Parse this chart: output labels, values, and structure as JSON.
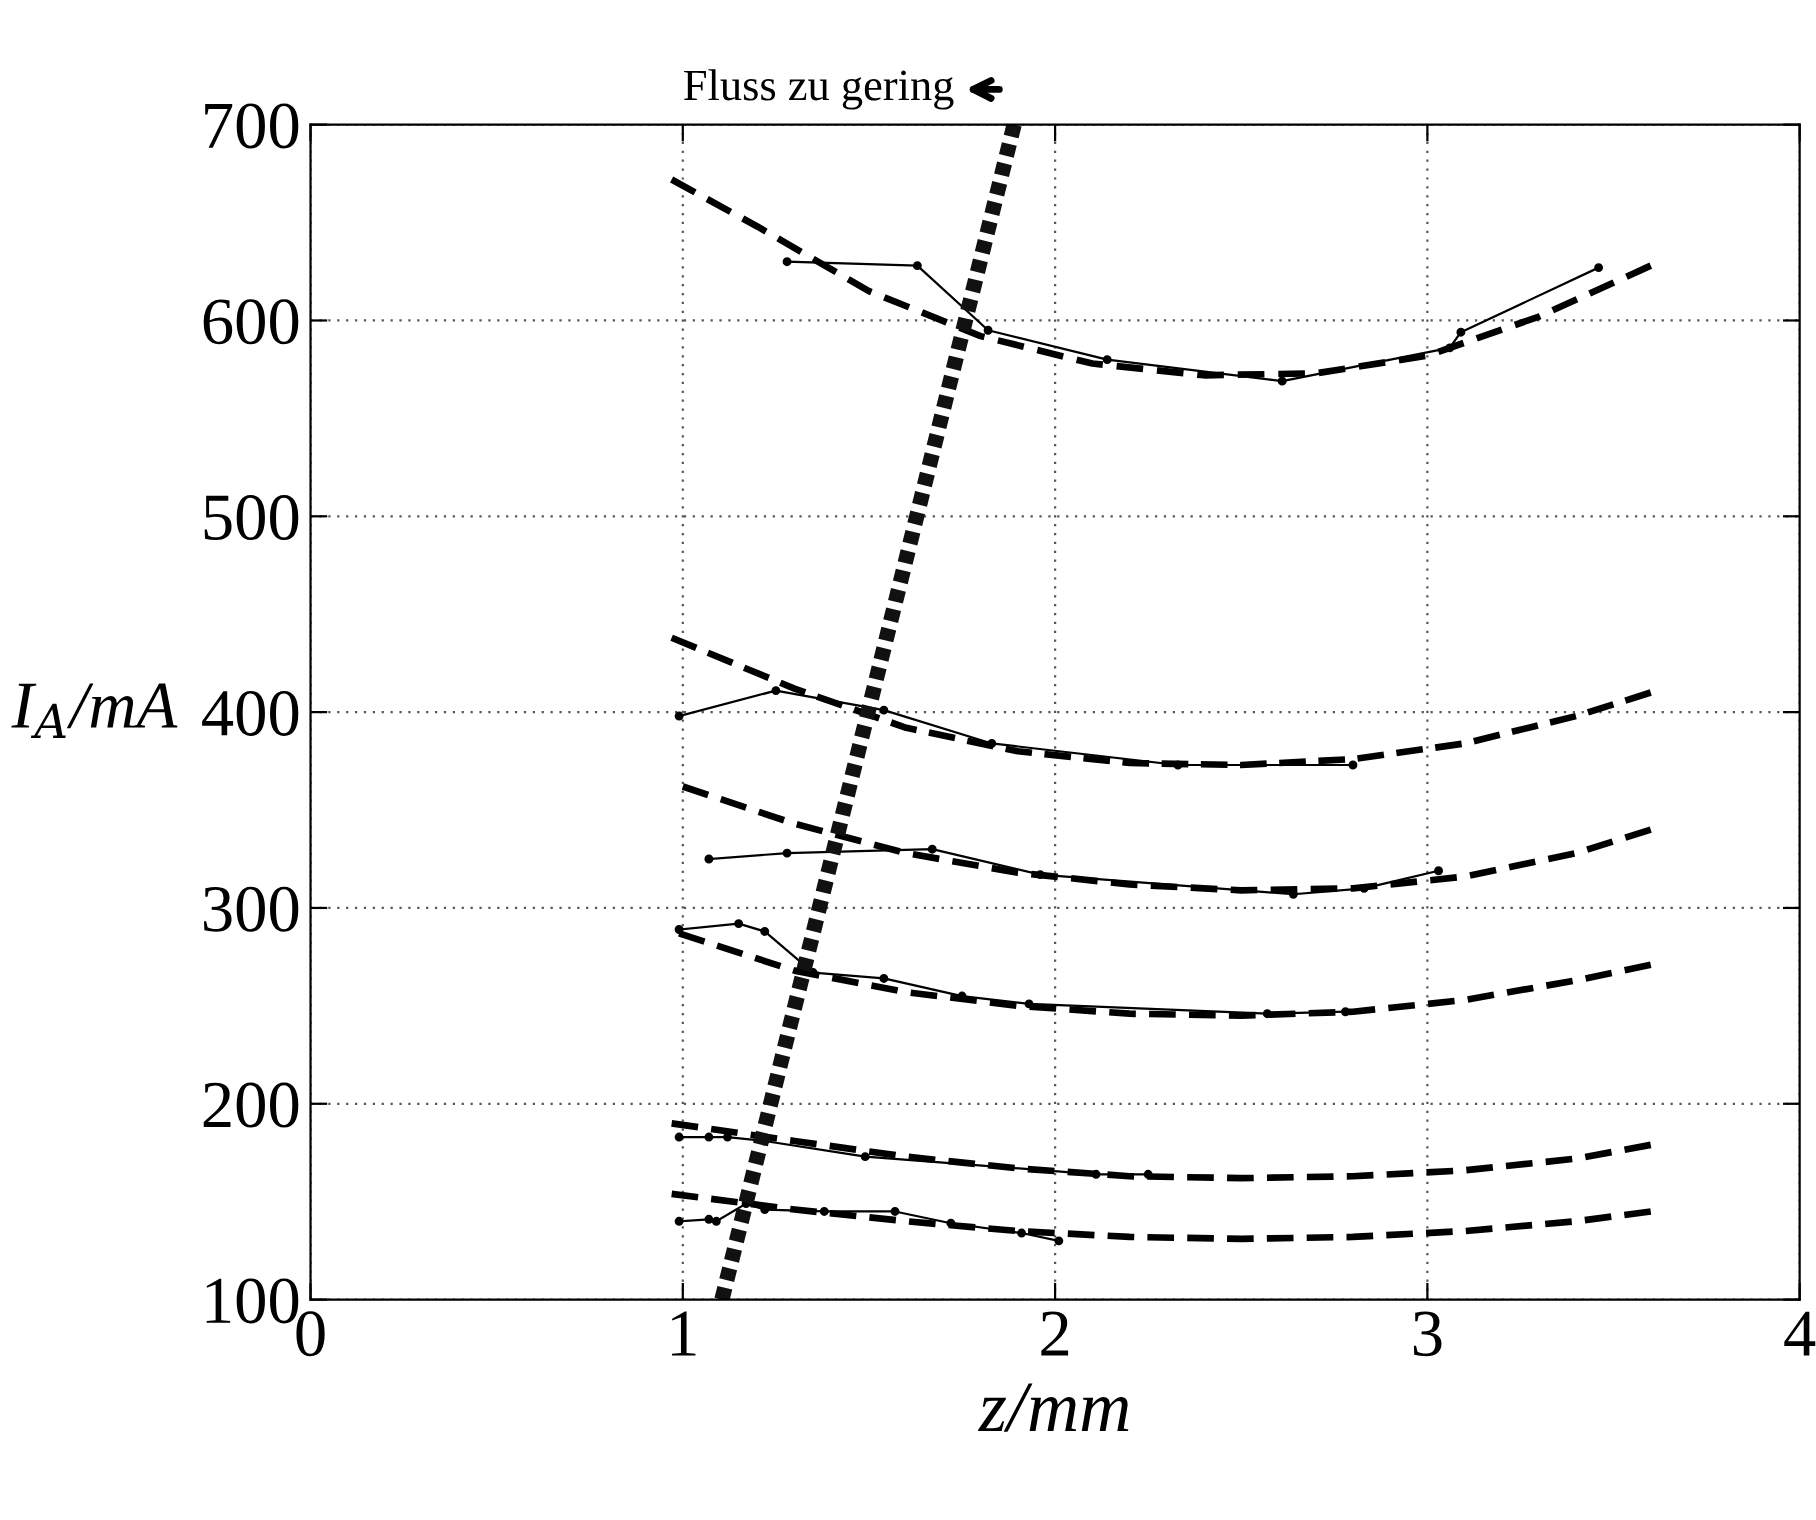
{
  "chart_data": {
    "type": "line",
    "xlabel": "z/mm",
    "ylabel": "I$_{A}$/mA",
    "xlim": [
      0,
      4
    ],
    "ylim": [
      100,
      700
    ],
    "xticks": [
      0,
      1,
      2,
      3,
      4
    ],
    "yticks": [
      100,
      200,
      300,
      400,
      500,
      600,
      700
    ],
    "grid": true,
    "legend": false,
    "annotations": [
      "Fluss zu gering"
    ],
    "series": [
      {
        "color": "#000000",
        "line_style": "dashed",
        "marker": "none",
        "x": [
          0.97,
          1.2,
          1.5,
          1.8,
          2.1,
          2.4,
          2.7,
          3.0,
          3.3,
          3.6
        ],
        "values": [
          672,
          648,
          615,
          592,
          578,
          572,
          573,
          582,
          602,
          628
        ]
      },
      {
        "color": "#000000",
        "line_style": "solid",
        "marker": "circle",
        "x": [
          1.28,
          1.63,
          1.82,
          2.14,
          2.61,
          3.06,
          3.09,
          3.46
        ],
        "values": [
          630,
          628,
          595,
          580,
          569,
          586,
          594,
          627
        ]
      },
      {
        "color": "#000000",
        "line_style": "dashed",
        "marker": "none",
        "x": [
          0.97,
          1.3,
          1.6,
          1.9,
          2.2,
          2.5,
          2.8,
          3.1,
          3.4,
          3.6
        ],
        "values": [
          438,
          412,
          392,
          380,
          374,
          373,
          376,
          384,
          398,
          410
        ]
      },
      {
        "color": "#000000",
        "line_style": "solid",
        "marker": "circle",
        "x": [
          0.99,
          1.25,
          1.54,
          1.83,
          2.33,
          2.8
        ],
        "values": [
          398,
          411,
          401,
          384,
          373,
          373
        ]
      },
      {
        "color": "#000000",
        "line_style": "dashed",
        "marker": "none",
        "x": [
          1.0,
          1.3,
          1.6,
          1.9,
          2.2,
          2.5,
          2.8,
          3.1,
          3.4,
          3.6
        ],
        "values": [
          362,
          343,
          328,
          318,
          312,
          309,
          310,
          316,
          328,
          340
        ]
      },
      {
        "color": "#000000",
        "line_style": "solid",
        "marker": "circle",
        "x": [
          1.07,
          1.28,
          1.67,
          1.96,
          2.64,
          2.83,
          3.03
        ],
        "values": [
          325,
          328,
          330,
          317,
          307,
          310,
          319
        ]
      },
      {
        "color": "#000000",
        "line_style": "dashed",
        "marker": "none",
        "x": [
          0.99,
          1.3,
          1.6,
          1.9,
          2.2,
          2.5,
          2.8,
          3.1,
          3.4,
          3.6
        ],
        "values": [
          287,
          268,
          257,
          250,
          246,
          245,
          247,
          253,
          263,
          271
        ]
      },
      {
        "color": "#000000",
        "line_style": "solid",
        "marker": "circle",
        "x": [
          0.99,
          1.15,
          1.22,
          1.35,
          1.54,
          1.75,
          1.93,
          2.57,
          2.78
        ],
        "values": [
          289,
          292,
          288,
          267,
          264,
          255,
          251,
          246,
          247
        ]
      },
      {
        "color": "#000000",
        "line_style": "dashed",
        "marker": "none",
        "x": [
          0.97,
          1.3,
          1.6,
          1.9,
          2.2,
          2.5,
          2.8,
          3.1,
          3.4,
          3.6
        ],
        "values": [
          190,
          181,
          173,
          167,
          163,
          162,
          163,
          166,
          172,
          179
        ]
      },
      {
        "color": "#000000",
        "line_style": "solid",
        "marker": "circle",
        "x": [
          0.99,
          1.07,
          1.12,
          1.22,
          1.49,
          2.11,
          2.25
        ],
        "values": [
          183,
          183,
          183,
          181,
          173,
          164,
          164
        ]
      },
      {
        "color": "#000000",
        "line_style": "dashed",
        "marker": "none",
        "x": [
          0.97,
          1.3,
          1.6,
          1.9,
          2.2,
          2.5,
          2.8,
          3.1,
          3.4,
          3.6
        ],
        "values": [
          154,
          146,
          140,
          135,
          132,
          131,
          132,
          135,
          140,
          145
        ]
      },
      {
        "color": "#000000",
        "line_style": "solid",
        "marker": "circle",
        "x": [
          0.99,
          1.07,
          1.09,
          1.17,
          1.22,
          1.38,
          1.57,
          1.72,
          1.91,
          2.01
        ],
        "values": [
          140,
          141,
          140,
          149,
          146,
          145,
          145,
          139,
          134,
          130
        ]
      },
      {
        "color": "#111111",
        "line_style": "dotted",
        "marker": "none",
        "x": [
          1.105,
          1.89
        ],
        "values": [
          100,
          700
        ]
      }
    ]
  }
}
